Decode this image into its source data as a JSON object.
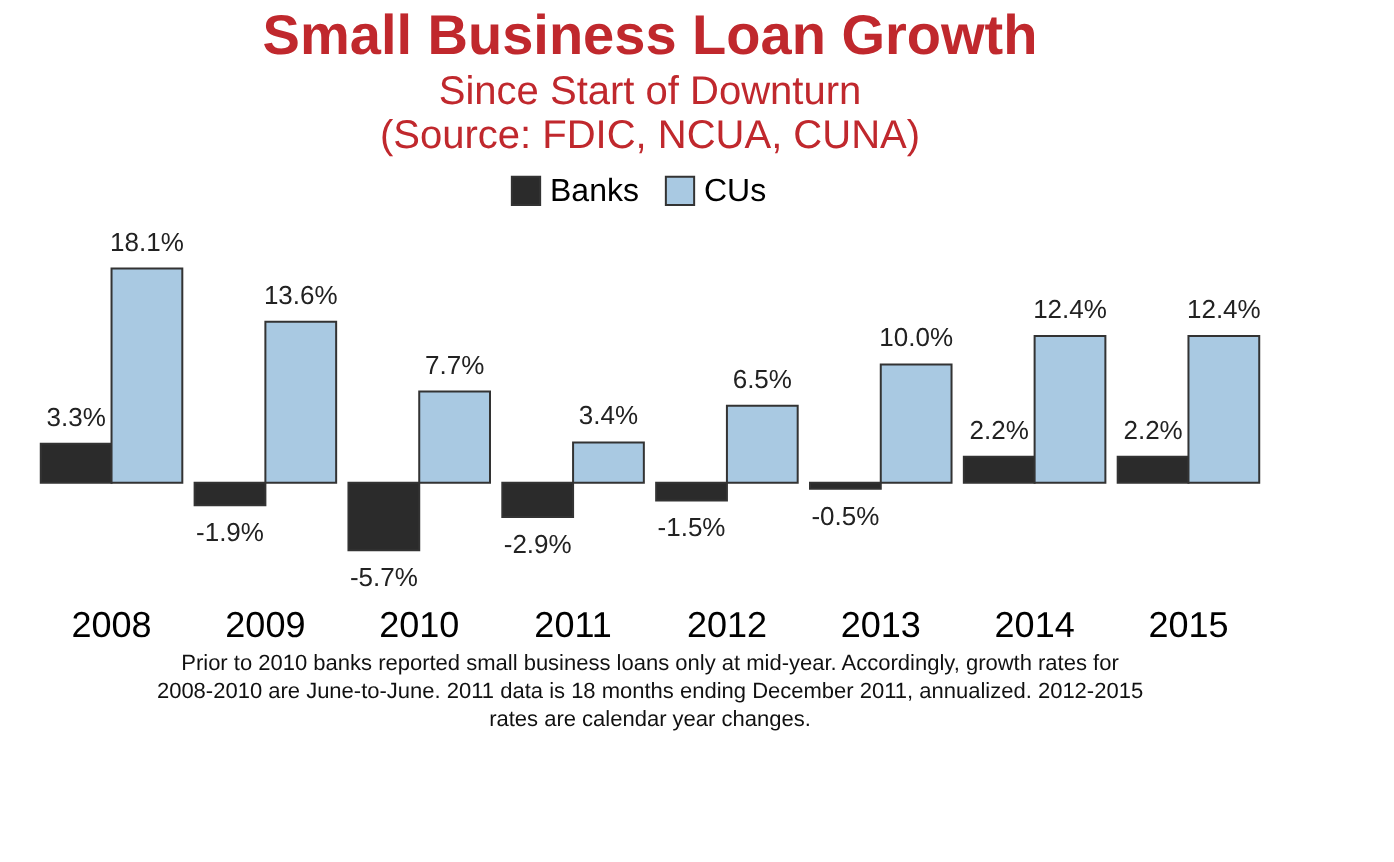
{
  "chart_data": {
    "type": "bar",
    "title": "Small Business Loan Growth",
    "subtitle": "Since Start of Downturn",
    "annotations": [
      "(Source: FDIC, NCUA, CUNA)",
      "Prior to 2010 banks reported small business loans only at mid-year.  Accordingly, growth rates for 2008-2010 are June-to-June.  2011 data is 18 months ending December 2011, annualized.  2012-2015 rates are calendar year changes."
    ],
    "categories": [
      "2008",
      "2009",
      "2010",
      "2011",
      "2012",
      "2013",
      "2014",
      "2015"
    ],
    "series": [
      {
        "name": "Banks",
        "color": "#2b2b2b",
        "values": [
          3.3,
          -1.9,
          -5.7,
          -2.9,
          -1.5,
          -0.5,
          2.2,
          2.2
        ],
        "value_labels": [
          "3.3%",
          "-1.9%",
          "-5.7%",
          "-2.9%",
          "-1.5%",
          "-0.5%",
          "2.2%",
          "2.2%"
        ]
      },
      {
        "name": "CUs",
        "color": "#a9c9e2",
        "values": [
          18.1,
          13.6,
          7.7,
          3.4,
          6.5,
          10.0,
          12.4,
          12.4
        ],
        "value_labels": [
          "18.1%",
          "13.6%",
          "7.7%",
          "3.4%",
          "6.5%",
          "10.0%",
          "12.4%",
          "12.4%"
        ]
      }
    ],
    "legend": "top",
    "grid": false
  }
}
